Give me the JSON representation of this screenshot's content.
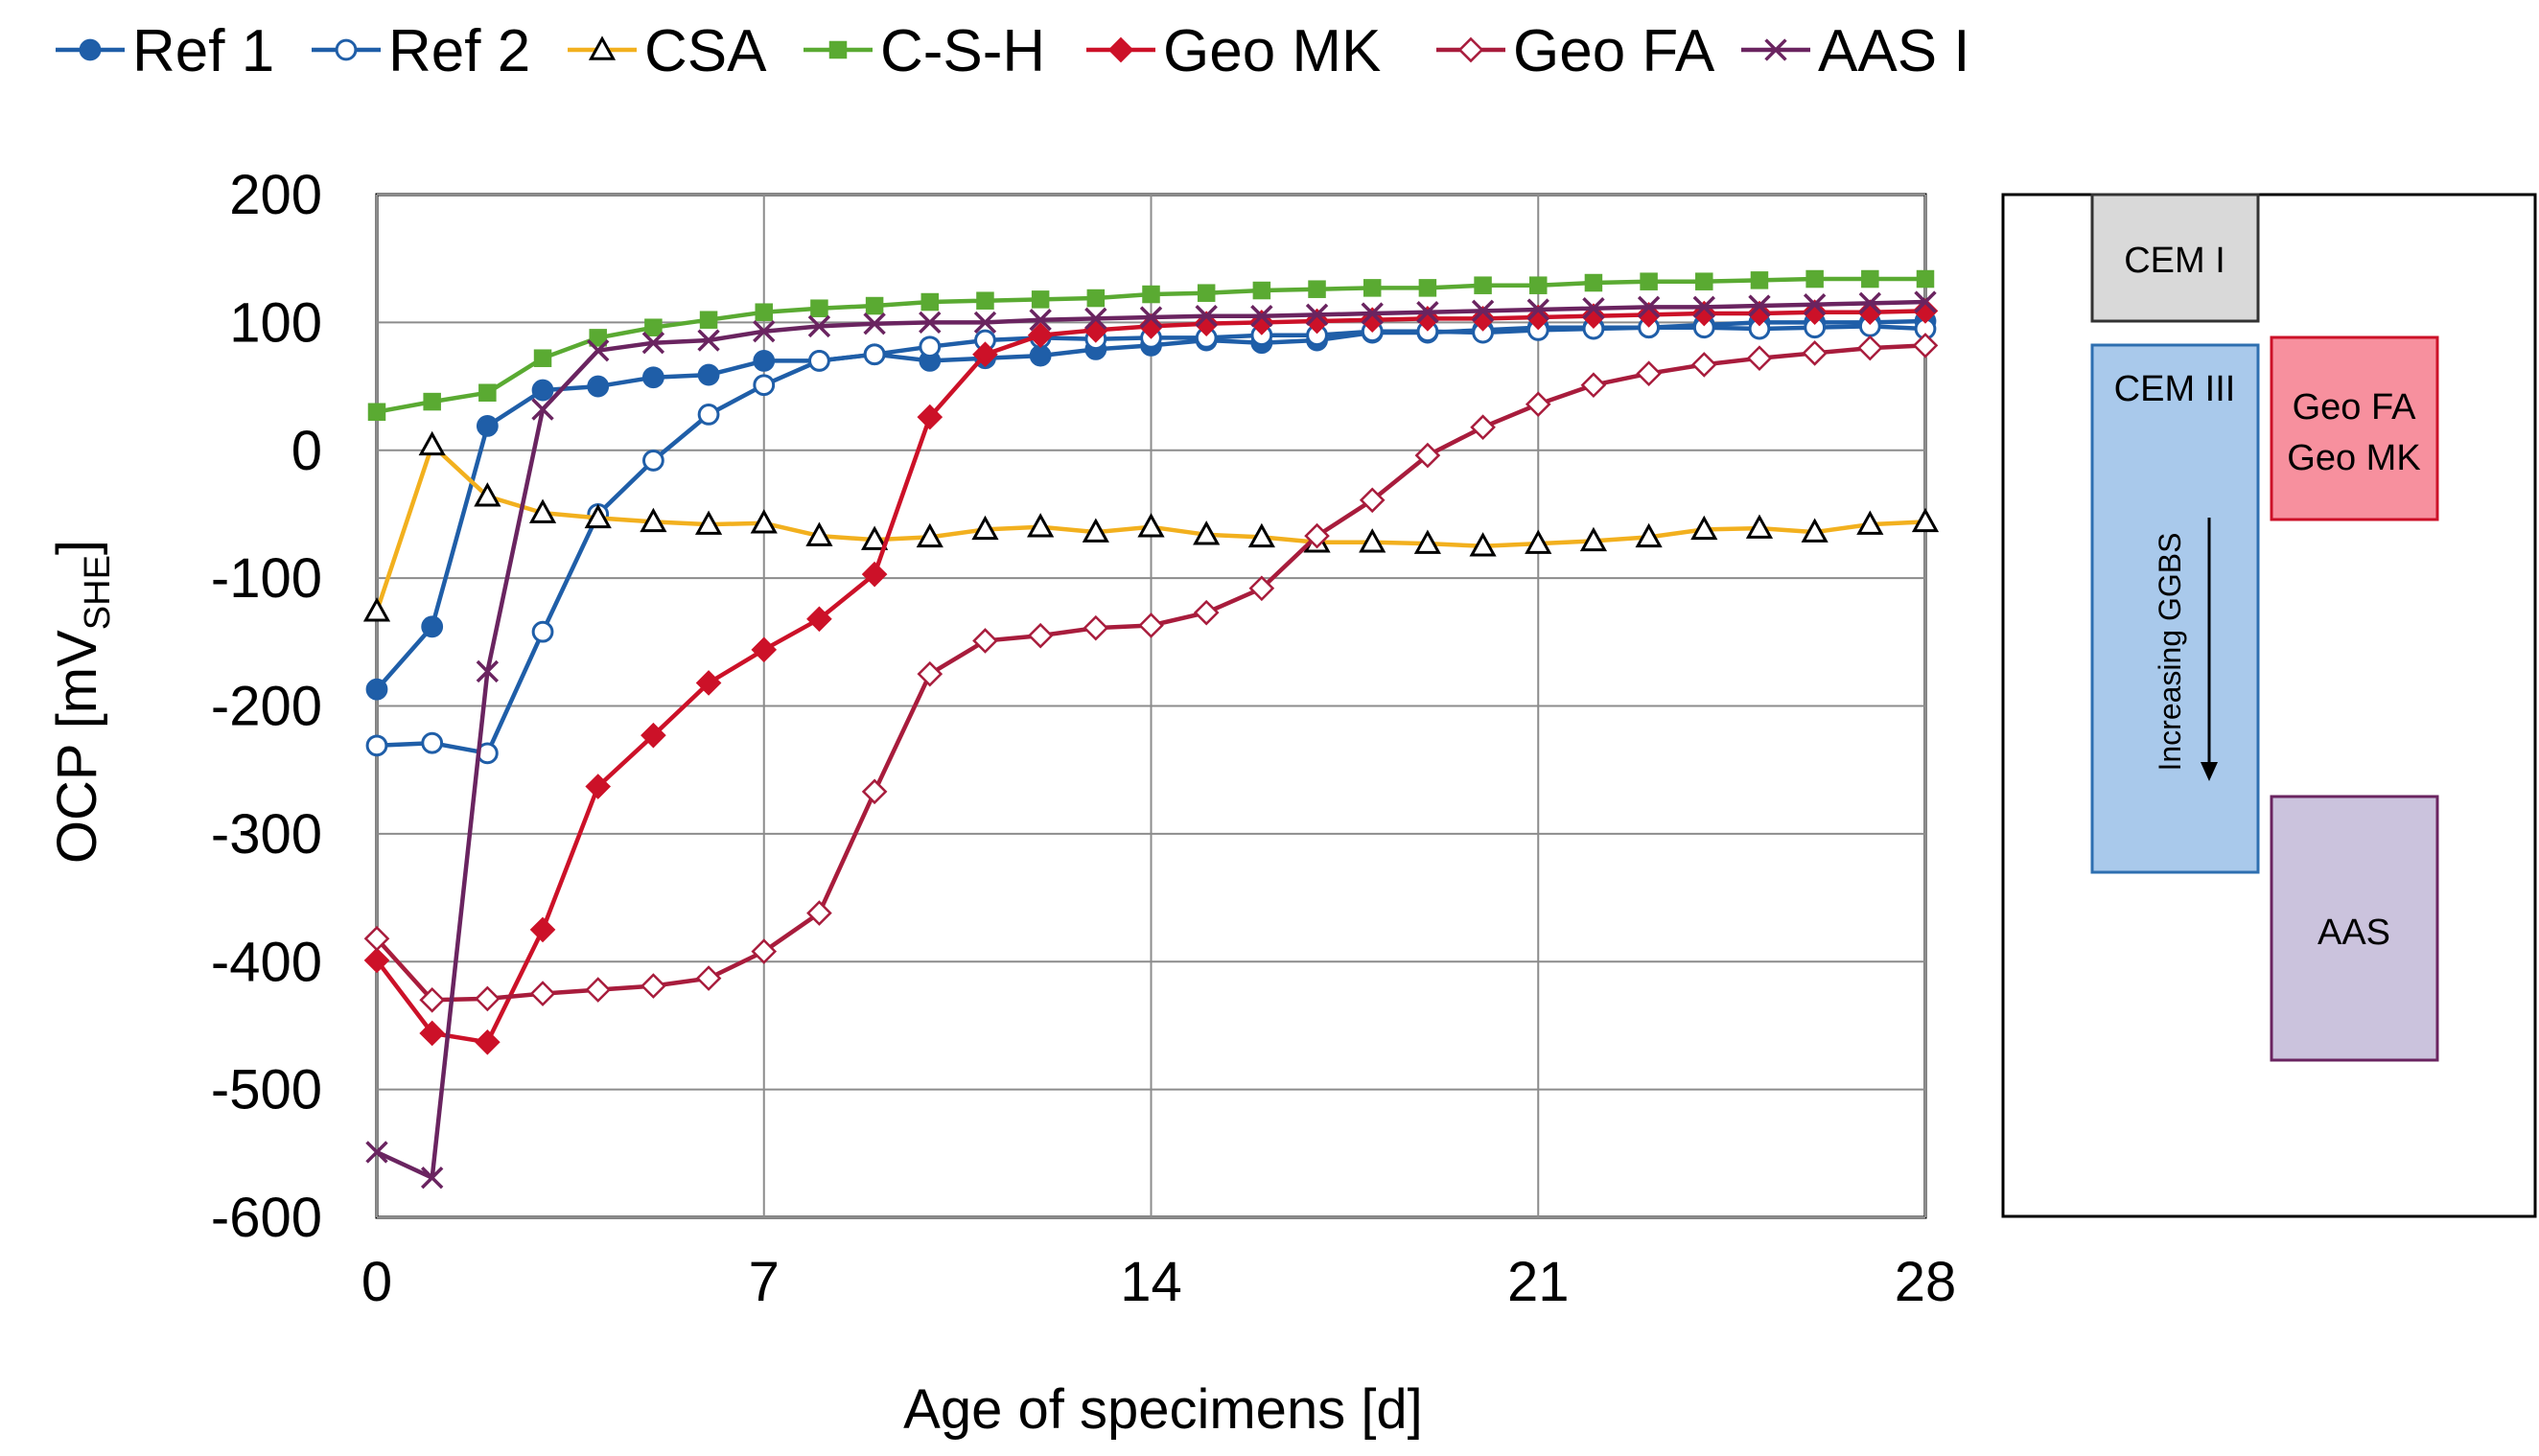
{
  "chart_data": {
    "type": "line",
    "title": "",
    "xlabel": "Age of specimens [d]",
    "ylabel_main": "OCP [mV",
    "ylabel_sub": "SHE",
    "ylabel_end": "]",
    "xlim": [
      0,
      28
    ],
    "ylim": [
      -600,
      200
    ],
    "xticks": [
      0,
      7,
      14,
      21,
      28
    ],
    "yticks": [
      200,
      100,
      0,
      -100,
      -200,
      -300,
      -400,
      -500,
      -600
    ],
    "grid": true,
    "legend_position": "top",
    "series": [
      {
        "name": "Ref 1",
        "color": "#1f5ea8",
        "marker": "circle",
        "filled": true,
        "x": [
          0,
          1,
          2,
          3,
          4,
          5,
          6,
          7,
          8,
          9,
          10,
          11,
          12,
          13,
          14,
          15,
          16,
          17,
          18,
          19,
          20,
          21,
          22,
          23,
          24,
          25,
          26,
          27,
          28
        ],
        "y": [
          -187,
          -138,
          19,
          47,
          50,
          57,
          59,
          70,
          70,
          75,
          70,
          72,
          74,
          79,
          82,
          86,
          84,
          86,
          92,
          92,
          94,
          96,
          96,
          96,
          98,
          100,
          100,
          100,
          101
        ]
      },
      {
        "name": "Ref 2",
        "color": "#1f5ea8",
        "marker": "circle",
        "filled": false,
        "x": [
          0,
          1,
          2,
          3,
          4,
          5,
          6,
          7,
          8,
          9,
          10,
          11,
          12,
          13,
          14,
          15,
          16,
          17,
          18,
          19,
          20,
          21,
          22,
          23,
          24,
          25,
          26,
          27,
          28
        ],
        "y": [
          -231,
          -229,
          -237,
          -142,
          -50,
          -8,
          28,
          51,
          70,
          75,
          81,
          86,
          88,
          87,
          88,
          88,
          90,
          90,
          93,
          93,
          92,
          94,
          95,
          96,
          96,
          95,
          96,
          97,
          95
        ]
      },
      {
        "name": "CSA",
        "color": "#f2b01e",
        "marker": "triangle",
        "filled": false,
        "x": [
          0,
          1,
          2,
          3,
          4,
          5,
          6,
          7,
          8,
          9,
          10,
          11,
          12,
          13,
          14,
          15,
          16,
          17,
          18,
          19,
          20,
          21,
          22,
          23,
          24,
          25,
          26,
          27,
          28
        ],
        "y": [
          -126,
          4,
          -36,
          -49,
          -53,
          -56,
          -58,
          -57,
          -67,
          -70,
          -68,
          -62,
          -60,
          -64,
          -60,
          -66,
          -68,
          -72,
          -72,
          -73,
          -75,
          -73,
          -71,
          -68,
          -62,
          -61,
          -64,
          -58,
          -56
        ]
      },
      {
        "name": "C-S-H",
        "color": "#5aaa32",
        "marker": "square",
        "filled": true,
        "x": [
          0,
          1,
          2,
          3,
          4,
          5,
          6,
          7,
          8,
          9,
          10,
          11,
          12,
          13,
          14,
          15,
          16,
          17,
          18,
          19,
          20,
          21,
          22,
          23,
          24,
          25,
          26,
          27,
          28
        ],
        "y": [
          30,
          38,
          45,
          72,
          88,
          96,
          102,
          108,
          111,
          113,
          116,
          117,
          118,
          119,
          122,
          123,
          125,
          126,
          127,
          127,
          129,
          129,
          131,
          132,
          132,
          133,
          134,
          134,
          134
        ]
      },
      {
        "name": "Geo MK",
        "color": "#cc1128",
        "marker": "diamond",
        "filled": true,
        "x": [
          0,
          1,
          2,
          3,
          4,
          5,
          6,
          7,
          8,
          9,
          10,
          11,
          12,
          13,
          14,
          15,
          16,
          17,
          18,
          19,
          20,
          21,
          22,
          23,
          24,
          25,
          26,
          27,
          28
        ],
        "y": [
          -399,
          -456,
          -463,
          -375,
          -263,
          -223,
          -182,
          -156,
          -132,
          -97,
          26,
          75,
          90,
          94,
          97,
          99,
          100,
          101,
          102,
          103,
          103,
          104,
          105,
          106,
          107,
          107,
          108,
          108,
          109
        ]
      },
      {
        "name": "Geo FA",
        "color": "#a81c3c",
        "marker": "diamond",
        "filled": false,
        "x": [
          0,
          1,
          2,
          3,
          4,
          5,
          6,
          7,
          8,
          9,
          10,
          11,
          12,
          13,
          14,
          15,
          16,
          17,
          18,
          19,
          20,
          21,
          22,
          23,
          24,
          25,
          26,
          27,
          28
        ],
        "y": [
          -382,
          -430,
          -429,
          -425,
          -422,
          -419,
          -413,
          -392,
          -362,
          -267,
          -175,
          -149,
          -145,
          -139,
          -137,
          -127,
          -108,
          -67,
          -39,
          -4,
          18,
          36,
          51,
          60,
          67,
          72,
          76,
          80,
          82
        ]
      },
      {
        "name": "AAS I",
        "color": "#6a2460",
        "marker": "x",
        "filled": false,
        "x": [
          0,
          1,
          2,
          3,
          4,
          5,
          6,
          7,
          8,
          9,
          10,
          11,
          12,
          13,
          14,
          15,
          16,
          17,
          18,
          19,
          20,
          21,
          22,
          23,
          24,
          25,
          26,
          27,
          28
        ],
        "y": [
          -549,
          -569,
          -173,
          32,
          78,
          84,
          86,
          93,
          97,
          99,
          100,
          100,
          102,
          103,
          104,
          105,
          105,
          106,
          107,
          108,
          109,
          110,
          111,
          112,
          112,
          113,
          114,
          115,
          116
        ]
      }
    ]
  },
  "side_panel": {
    "boxes": [
      {
        "label": "CEM I",
        "fill": "#d9d9d9",
        "stroke": "#333333"
      },
      {
        "label": "CEM III",
        "fill": "#a9c9eb",
        "stroke": "#2e6fb0"
      },
      {
        "label_line1": "Geo FA",
        "label_line2": "Geo MK",
        "fill": "#f7909e",
        "stroke": "#cc1128"
      },
      {
        "label": "AAS",
        "fill": "#cbc3dd",
        "stroke": "#6a2460"
      }
    ],
    "arrow_label": "Increasing GGBS"
  }
}
